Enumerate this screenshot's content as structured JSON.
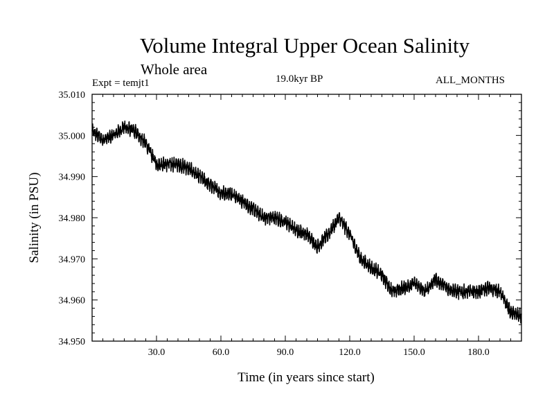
{
  "chart_data": {
    "type": "line",
    "title": "Volume Integral Upper Ocean Salinity",
    "subtitle": "Whole area",
    "expt_label": "Expt = temjt1",
    "period_label": "19.0kyr BP",
    "months_label": "ALL_MONTHS",
    "xlabel": "Time (in years since start)",
    "ylabel": "Salinity (in PSU)",
    "xlim": [
      0,
      200
    ],
    "ylim": [
      34.95,
      35.01
    ],
    "x_ticks": [
      "30.0",
      "60.0",
      "90.0",
      "120.0",
      "150.0",
      "180.0"
    ],
    "x_tick_values": [
      30,
      60,
      90,
      120,
      150,
      180
    ],
    "y_ticks": [
      "34.950",
      "34.960",
      "34.970",
      "34.980",
      "34.990",
      "35.000",
      "35.010"
    ],
    "y_tick_values": [
      34.95,
      34.96,
      34.97,
      34.98,
      34.99,
      35.0,
      35.01
    ],
    "grid": false,
    "series": [
      {
        "name": "Salinity",
        "color": "#000000",
        "x": [
          0,
          5,
          10,
          15,
          20,
          25,
          30,
          35,
          40,
          45,
          50,
          55,
          60,
          65,
          70,
          75,
          80,
          85,
          90,
          95,
          100,
          105,
          110,
          115,
          120,
          125,
          130,
          135,
          140,
          145,
          150,
          155,
          160,
          165,
          170,
          175,
          180,
          185,
          190,
          195,
          200
        ],
        "values": [
          35.001,
          34.999,
          35.0,
          35.002,
          35.001,
          34.998,
          34.993,
          34.993,
          34.993,
          34.992,
          34.99,
          34.988,
          34.986,
          34.986,
          34.984,
          34.982,
          34.98,
          34.98,
          34.979,
          34.977,
          34.976,
          34.973,
          34.976,
          34.98,
          34.976,
          34.97,
          34.968,
          34.966,
          34.962,
          34.963,
          34.964,
          34.962,
          34.965,
          34.963,
          34.962,
          34.962,
          34.962,
          34.963,
          34.962,
          34.957,
          34.956
        ],
        "noise_amplitude": 0.0016
      }
    ]
  }
}
